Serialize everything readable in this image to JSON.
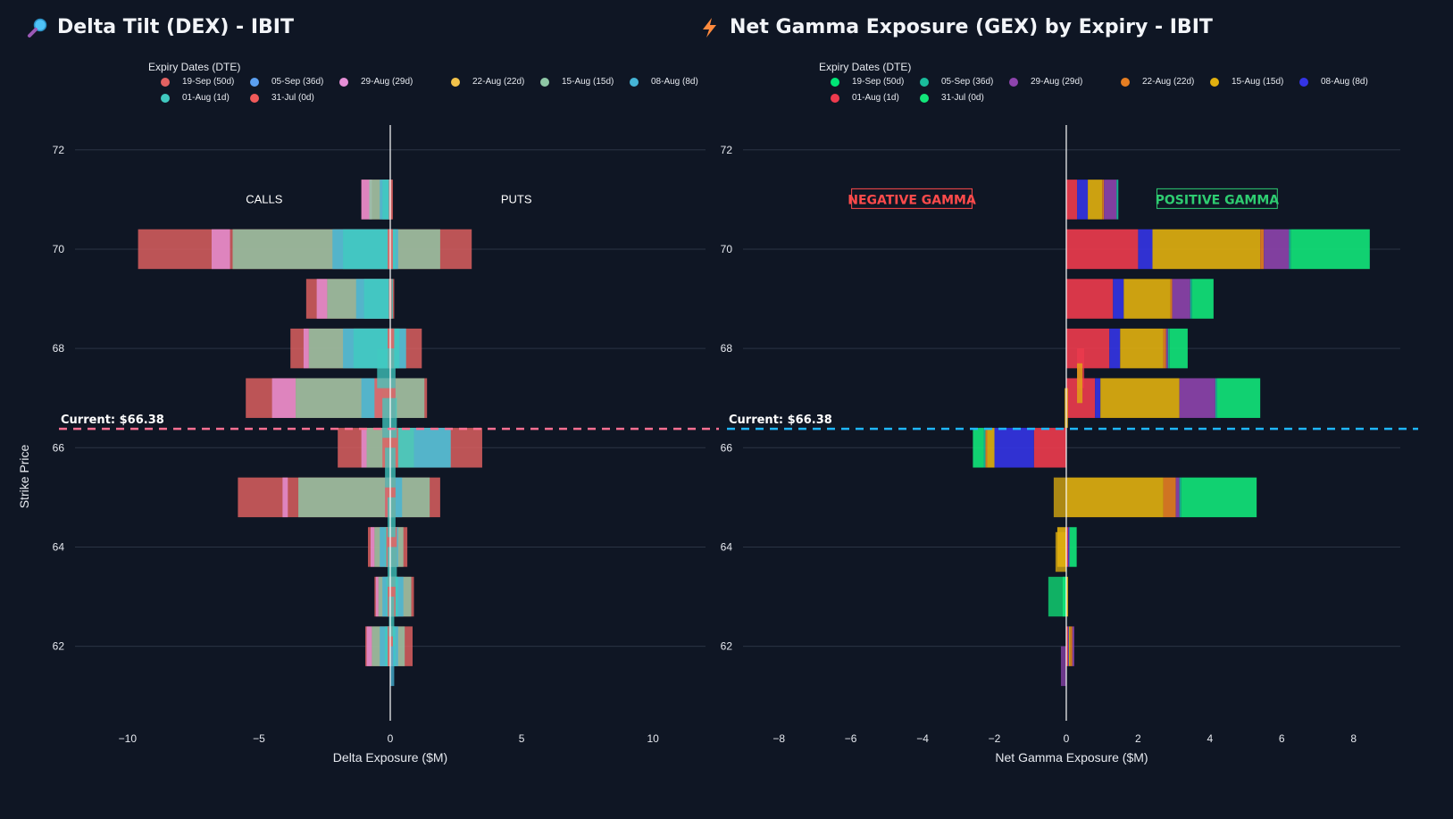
{
  "panels": {
    "dex": {
      "title": "Delta Tilt (DEX) - IBIT",
      "icon": "magnifier-icon",
      "legend_title": "Expiry Dates (DTE)"
    },
    "gex": {
      "title": "Net Gamma Exposure (GEX) by Expiry - IBIT",
      "icon": "lightning-icon",
      "legend_title": "Expiry Dates (DTE)"
    }
  },
  "chart_data": [
    {
      "type": "bar",
      "orientation": "horizontal",
      "stacking": "overlay",
      "title": "Delta Tilt (DEX) - IBIT",
      "xlabel": "Delta Exposure ($M)",
      "ylabel": "Strike Price",
      "xlim": [
        -12,
        12
      ],
      "ylim": [
        60.5,
        72.5
      ],
      "xticks": [
        -10,
        -5,
        0,
        5,
        10
      ],
      "yticks": [
        62,
        64,
        66,
        68,
        70,
        72
      ],
      "current_price_label": "Current: $66.38",
      "current_price": 66.38,
      "current_line_color": "#ff6f91",
      "annotations": [
        {
          "text": "CALLS",
          "x": -4.8,
          "y": 71.0
        },
        {
          "text": "PUTS",
          "x": 4.8,
          "y": 71.0
        }
      ],
      "legend": [
        "19-Sep (50d)",
        "05-Sep (36d)",
        "29-Aug (29d)",
        "22-Aug (22d)",
        "15-Aug (15d)",
        "08-Aug (8d)",
        "01-Aug (1d)",
        "31-Jul (0d)"
      ],
      "colors": [
        "#e36262",
        "#5b9ff0",
        "#e58fd6",
        "#f2c24a",
        "#8fc7a6",
        "#45b4d6",
        "#40c9c0",
        "#f05a5a"
      ],
      "categories": [
        71,
        70,
        69,
        68,
        67,
        66,
        65,
        64,
        63,
        62
      ],
      "series": [
        {
          "name": "19-Sep (50d)",
          "values": [
            [
              -1.1,
              0.1
            ],
            [
              -9.6,
              3.1
            ],
            [
              -3.2,
              0.15
            ],
            [
              -3.8,
              1.2
            ],
            [
              -5.5,
              1.4
            ],
            [
              -2.0,
              3.5
            ],
            [
              -5.8,
              1.9
            ],
            [
              -0.85,
              0.65
            ],
            [
              -0.6,
              0.9
            ],
            [
              -0.95,
              0.85
            ]
          ]
        },
        {
          "name": "29-Aug (29d)",
          "values": [
            [
              -1.1,
              -0.7
            ],
            [
              -6.8,
              -6.1
            ],
            [
              -2.8,
              -2.4
            ],
            [
              -3.3,
              -3.1
            ],
            [
              -4.5,
              -3.6
            ],
            [
              -1.1,
              -0.9
            ],
            [
              -4.1,
              -3.9
            ],
            [
              -0.75,
              -0.6
            ],
            [
              -0.55,
              -0.45
            ],
            [
              -0.9,
              -0.7
            ]
          ]
        },
        {
          "name": "15-Aug (15d)",
          "values": [
            [
              -0.8,
              0.0
            ],
            [
              -6.0,
              1.9
            ],
            [
              -2.4,
              0.0
            ],
            [
              -3.1,
              0.6
            ],
            [
              -3.6,
              1.3
            ],
            [
              -0.9,
              2.3
            ],
            [
              -3.5,
              1.5
            ],
            [
              -0.6,
              0.5
            ],
            [
              -0.45,
              0.8
            ],
            [
              -0.7,
              0.55
            ]
          ]
        },
        {
          "name": "08-Aug (8d)",
          "values": [
            [
              -0.4,
              0.0
            ],
            [
              -2.2,
              0.3
            ],
            [
              -1.3,
              0.0
            ],
            [
              -1.8,
              0.6
            ],
            [
              -1.1,
              0.2
            ],
            [
              0.9,
              2.3
            ],
            [
              -0.2,
              0.45
            ],
            [
              -0.4,
              0.3
            ],
            [
              -0.3,
              0.5
            ],
            [
              -0.4,
              0.3
            ]
          ]
        },
        {
          "name": "01-Aug (1d)",
          "values": [
            [
              -0.3,
              0.05
            ],
            [
              -1.8,
              0.2
            ],
            [
              -1.0,
              0.1
            ],
            [
              -1.4,
              0.35
            ],
            [
              -0.3,
              0.15
            ],
            [
              -0.3,
              0.9
            ],
            [
              -0.1,
              0.2
            ],
            [
              -0.2,
              0.2
            ],
            [
              -0.15,
              0.3
            ],
            [
              -0.2,
              0.2
            ]
          ]
        },
        {
          "name": "31-Jul (0d)",
          "values": [
            [
              -0.05,
              0.05
            ],
            [
              -0.1,
              0.1
            ],
            [
              -0.05,
              0.05
            ],
            [
              -0.1,
              0.15
            ],
            [
              -0.6,
              0.2
            ],
            [
              -0.3,
              0.3
            ],
            [
              -0.2,
              0.2
            ],
            [
              -0.15,
              0.25
            ],
            [
              -0.1,
              0.2
            ],
            [
              -0.1,
              0.1
            ]
          ]
        }
      ],
      "thin_bars": [
        {
          "y": 67.6,
          "x0": -0.5,
          "x1": 0.2,
          "color": "#40c9c0"
        },
        {
          "y": 66.6,
          "x0": -0.3,
          "x1": 0.25,
          "color": "#40c9c0"
        },
        {
          "y": 65.6,
          "x0": -0.2,
          "x1": 0.2,
          "color": "#40c9c0"
        },
        {
          "y": 64.6,
          "x0": -0.1,
          "x1": 0.2,
          "color": "#40c9c0"
        },
        {
          "y": 63.6,
          "x0": -0.1,
          "x1": 0.25,
          "color": "#40c9c0"
        },
        {
          "y": 62.6,
          "x0": -0.05,
          "x1": 0.15,
          "color": "#40c9c0"
        },
        {
          "y": 61.6,
          "x0": 0.0,
          "x1": 0.15,
          "color": "#45b4d6"
        }
      ]
    },
    {
      "type": "bar",
      "orientation": "horizontal",
      "stacking": "relative",
      "title": "Net Gamma Exposure (GEX) by Expiry - IBIT",
      "xlabel": "Net Gamma Exposure ($M)",
      "ylabel": "Strike Price",
      "xlim": [
        -9.0,
        9.3
      ],
      "ylim": [
        60.5,
        72.5
      ],
      "xticks": [
        -8,
        -6,
        -4,
        -2,
        0,
        2,
        4,
        6,
        8
      ],
      "yticks": [
        62,
        64,
        66,
        68,
        70,
        72
      ],
      "current_price_label": "Current: $66.38",
      "current_price": 66.38,
      "current_line_color": "#1fb6ff",
      "annotations": [
        {
          "text": "NEGATIVE GAMMA",
          "x": -4.3,
          "y": 71.0,
          "color": "#ff4b4b"
        },
        {
          "text": "POSITIVE GAMMA",
          "x": 4.2,
          "y": 71.0,
          "color": "#2ecc71"
        }
      ],
      "legend": [
        "19-Sep (50d)",
        "05-Sep (36d)",
        "29-Aug (29d)",
        "22-Aug (22d)",
        "15-Aug (15d)",
        "08-Aug (8d)",
        "01-Aug (1d)",
        "31-Jul (0d)"
      ],
      "colors": [
        "#00e676",
        "#1abc9c",
        "#8e44ad",
        "#e67e22",
        "#e1b00f",
        "#3434e6",
        "#ee3b4e",
        "#12e67a"
      ],
      "categories": [
        71,
        70,
        69,
        68,
        67,
        66,
        65,
        64,
        63,
        62
      ],
      "series": [
        {
          "name": "01-Aug (1d)",
          "values": [
            0.3,
            2.0,
            1.3,
            1.2,
            0.8,
            -0.9,
            0.0,
            0.05,
            0.0,
            0.05
          ]
        },
        {
          "name": "08-Aug (8d)",
          "values": [
            0.3,
            0.4,
            0.3,
            0.3,
            0.15,
            -1.1,
            0.0,
            0.02,
            0.0,
            0.02
          ]
        },
        {
          "name": "15-Aug (15d)",
          "values": [
            0.4,
            3.0,
            1.3,
            1.2,
            2.2,
            -0.2,
            2.7,
            -0.25,
            0.05,
            0.05
          ]
        },
        {
          "name": "22-Aug (22d)",
          "values": [
            0.05,
            0.1,
            0.05,
            0.08,
            0.0,
            -0.05,
            0.35,
            0.0,
            0.0,
            0.05
          ]
        },
        {
          "name": "29-Aug (29d)",
          "values": [
            0.35,
            0.7,
            0.5,
            0.05,
            1.0,
            0.0,
            0.1,
            0.02,
            0.0,
            0.05
          ]
        },
        {
          "name": "05-Sep (36d)",
          "values": [
            0.05,
            0.05,
            0.05,
            0.05,
            0.05,
            -0.05,
            0.05,
            0.0,
            0.0,
            0.0
          ]
        },
        {
          "name": "31-Jul (0d)",
          "values": [
            0.0,
            2.2,
            0.6,
            0.5,
            1.2,
            -0.3,
            2.1,
            0.2,
            -0.1,
            0.0
          ]
        }
      ],
      "thin_bars": [
        {
          "y": 67.6,
          "x0": 0.3,
          "x1": 0.5,
          "color": "#ee3b4e"
        },
        {
          "y": 67.3,
          "x0": 0.3,
          "x1": 0.45,
          "color": "#e1b00f"
        },
        {
          "y": 66.8,
          "x0": -0.05,
          "x1": 0.05,
          "color": "#e1b00f"
        },
        {
          "y": 65.0,
          "x0": -0.35,
          "x1": 0.0,
          "color": "#e1b00f"
        },
        {
          "y": 63.9,
          "x0": -0.3,
          "x1": 0.0,
          "color": "#e1b00f"
        },
        {
          "y": 63.0,
          "x0": -0.5,
          "x1": 0.0,
          "color": "#12e67a"
        },
        {
          "y": 61.6,
          "x0": -0.15,
          "x1": 0.0,
          "color": "#8e44ad"
        }
      ]
    }
  ]
}
